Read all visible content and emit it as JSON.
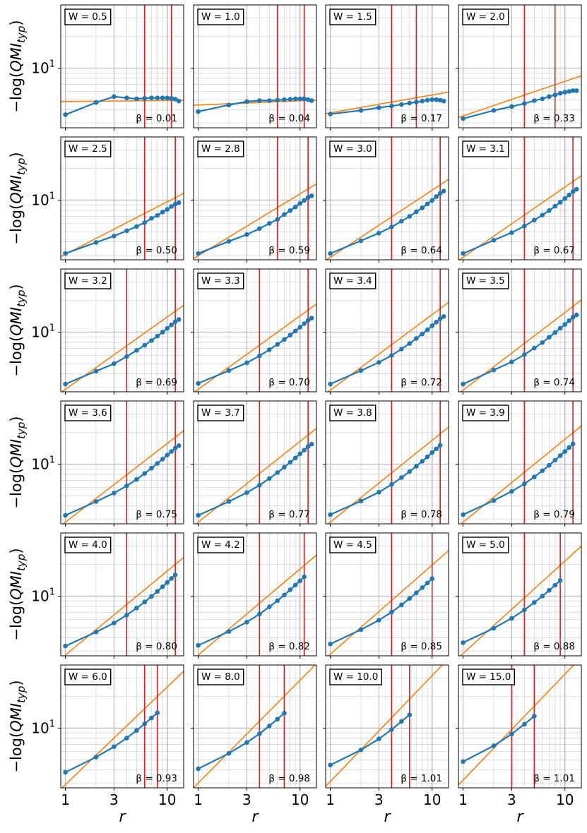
{
  "chart_data": {
    "type": "line",
    "layout": "6x4 grid of panels, log-log axes",
    "x_scale": "log",
    "y_scale": "log",
    "xlim": [
      0.9,
      14.5
    ],
    "ylim": [
      2.7,
      40
    ],
    "x_ticks": [
      1,
      3,
      10
    ],
    "x_tick_labels": [
      "1",
      "3",
      "10"
    ],
    "y_ticks": [
      10
    ],
    "y_tick_labels": [
      "10"
    ],
    "y_tick_exponent": "1",
    "xlabel": "r",
    "ylabel_prefix": "−log(",
    "ylabel_main": "QMI",
    "ylabel_sub": "typ",
    "ylabel_suffix": ")",
    "grid": true,
    "colors": {
      "data": "#1f77b4",
      "fit": "#ff7f0e",
      "window": "#e31a1c",
      "grid": "#b0b0b0"
    },
    "data_r": [
      1,
      2,
      3,
      4,
      5,
      6,
      7,
      8,
      9,
      10,
      11,
      12,
      13
    ],
    "panels": [
      {
        "W": "W = 0.5",
        "beta": "β = 0.01",
        "beta_value": 0.01,
        "fit_a": 4.8,
        "window": [
          6,
          11
        ],
        "y": [
          3.6,
          4.7,
          5.35,
          5.2,
          5.1,
          5.15,
          5.2,
          5.2,
          5.2,
          5.2,
          5.15,
          5.05,
          4.85
        ]
      },
      {
        "W": "W = 1.0",
        "beta": "β = 0.04",
        "beta_value": 0.04,
        "fit_a": 4.45,
        "window": [
          6,
          11
        ],
        "y": [
          3.85,
          4.45,
          4.8,
          4.9,
          4.9,
          4.95,
          5.0,
          5.05,
          5.1,
          5.1,
          5.1,
          5.0,
          4.9
        ]
      },
      {
        "W": "W = 1.5",
        "beta": "β = 0.17",
        "beta_value": 0.17,
        "fit_a": 3.75,
        "window": [
          4,
          7
        ],
        "y": [
          3.65,
          3.95,
          4.2,
          4.35,
          4.5,
          4.65,
          4.75,
          4.85,
          4.95,
          5.0,
          5.0,
          4.95,
          4.85
        ]
      },
      {
        "W": "W = 2.0",
        "beta": "β = 0.33",
        "beta_value": 0.33,
        "fit_a": 3.5,
        "window": [
          4,
          8
        ],
        "y": [
          3.3,
          3.95,
          4.3,
          4.6,
          4.9,
          5.1,
          5.35,
          5.55,
          5.75,
          5.9,
          6.0,
          6.1,
          6.1
        ]
      },
      {
        "W": "W = 2.5",
        "beta": "β = 0.50",
        "beta_value": 0.5,
        "fit_a": 3.05,
        "window": [
          6,
          12
        ],
        "y": [
          3.1,
          3.95,
          4.55,
          5.1,
          5.6,
          6.1,
          6.7,
          7.15,
          7.7,
          8.15,
          8.7,
          9.15,
          9.45
        ]
      },
      {
        "W": "W = 2.8",
        "beta": "β = 0.59",
        "beta_value": 0.59,
        "fit_a": 2.95,
        "window": [
          6,
          12
        ],
        "y": [
          3.1,
          4.05,
          4.7,
          5.35,
          6.0,
          6.55,
          7.3,
          7.95,
          8.6,
          9.3,
          9.95,
          10.6,
          11.0
        ]
      },
      {
        "W": "W = 3.0",
        "beta": "β = 0.64",
        "beta_value": 0.64,
        "fit_a": 2.85,
        "window": [
          4,
          12
        ],
        "y": [
          3.1,
          4.1,
          4.85,
          5.55,
          6.3,
          7.0,
          7.75,
          8.45,
          9.2,
          9.95,
          10.8,
          11.6,
          12.2
        ]
      },
      {
        "W": "W = 3.1",
        "beta": "β = 0.67",
        "beta_value": 0.67,
        "fit_a": 2.85,
        "window": [
          4,
          12
        ],
        "y": [
          3.1,
          4.15,
          4.9,
          5.65,
          6.45,
          7.2,
          7.95,
          8.75,
          9.55,
          10.35,
          11.2,
          12.05,
          12.7
        ]
      },
      {
        "W": "W = 3.2",
        "beta": "β = 0.69",
        "beta_value": 0.69,
        "fit_a": 2.85,
        "window": [
          4,
          12
        ],
        "y": [
          3.2,
          4.25,
          5.0,
          5.85,
          6.7,
          7.5,
          8.3,
          9.15,
          10.0,
          10.85,
          11.7,
          12.55,
          13.2
        ]
      },
      {
        "W": "W = 3.3",
        "beta": "β = 0.70",
        "beta_value": 0.7,
        "fit_a": 2.85,
        "window": [
          4,
          12
        ],
        "y": [
          3.25,
          4.3,
          5.1,
          5.95,
          6.8,
          7.65,
          8.5,
          9.35,
          10.25,
          11.15,
          12.05,
          12.95,
          13.6
        ]
      },
      {
        "W": "W = 3.4",
        "beta": "β = 0.72",
        "beta_value": 0.72,
        "fit_a": 2.8,
        "window": [
          4,
          12
        ],
        "y": [
          3.2,
          4.3,
          5.15,
          6.0,
          6.9,
          7.8,
          8.7,
          9.6,
          10.55,
          11.5,
          12.45,
          13.4,
          14.1
        ]
      },
      {
        "W": "W = 3.5",
        "beta": "β = 0.74",
        "beta_value": 0.74,
        "fit_a": 2.8,
        "window": [
          4,
          12
        ],
        "y": [
          3.2,
          4.35,
          5.2,
          6.1,
          7.05,
          7.95,
          8.95,
          9.9,
          10.9,
          11.85,
          12.85,
          13.85,
          14.6
        ]
      },
      {
        "W": "W = 3.6",
        "beta": "β = 0.75",
        "beta_value": 0.75,
        "fit_a": 2.8,
        "window": [
          4,
          12
        ],
        "y": [
          3.25,
          4.4,
          5.3,
          6.2,
          7.15,
          8.15,
          9.15,
          10.15,
          11.15,
          12.2,
          13.2,
          14.2,
          15.0
        ]
      },
      {
        "W": "W = 3.7",
        "beta": "β = 0.77",
        "beta_value": 0.77,
        "fit_a": 2.8,
        "window": [
          4,
          12
        ],
        "y": [
          3.25,
          4.4,
          5.35,
          6.3,
          7.3,
          8.3,
          9.35,
          10.4,
          11.45,
          12.55,
          13.6,
          14.7,
          15.5
        ]
      },
      {
        "W": "W = 3.8",
        "beta": "β = 0.78",
        "beta_value": 0.78,
        "fit_a": 2.8,
        "window": [
          4,
          12
        ],
        "y": [
          3.3,
          4.45,
          5.4,
          6.4,
          7.45,
          8.5,
          9.55,
          10.65,
          11.75,
          12.9,
          14.0,
          15.15
        ]
      },
      {
        "W": "W = 3.9",
        "beta": "β = 0.79",
        "beta_value": 0.79,
        "fit_a": 2.8,
        "window": [
          4,
          12
        ],
        "y": [
          3.3,
          4.5,
          5.5,
          6.5,
          7.55,
          8.65,
          9.75,
          10.9,
          12.05,
          13.2,
          14.4,
          15.6
        ]
      },
      {
        "W": "W = 4.0",
        "beta": "β = 0.80",
        "beta_value": 0.8,
        "fit_a": 2.75,
        "window": [
          4,
          12
        ],
        "y": [
          3.35,
          4.55,
          5.55,
          6.6,
          7.7,
          8.8,
          9.95,
          11.1,
          12.3,
          13.5,
          14.75,
          15.95
        ]
      },
      {
        "W": "W = 4.2",
        "beta": "β = 0.82",
        "beta_value": 0.82,
        "fit_a": 2.75,
        "window": [
          4,
          11
        ],
        "y": [
          3.4,
          4.6,
          5.65,
          6.75,
          7.9,
          9.05,
          10.25,
          11.5,
          12.75,
          14.0,
          15.3
        ]
      },
      {
        "W": "W = 4.5",
        "beta": "β = 0.85",
        "beta_value": 0.85,
        "fit_a": 2.8,
        "window": [
          4,
          10
        ],
        "y": [
          3.5,
          4.8,
          5.9,
          7.05,
          8.25,
          9.5,
          10.75,
          12.05,
          13.35,
          14.7
        ]
      },
      {
        "W": "W = 5.0",
        "beta": "β = 0.88",
        "beta_value": 0.88,
        "fit_a": 2.85,
        "window": [
          4,
          9
        ],
        "y": [
          3.6,
          4.95,
          6.15,
          7.4,
          8.7,
          10.0,
          11.35,
          12.7,
          14.1
        ]
      },
      {
        "W": "W = 6.0",
        "beta": "β = 0.93",
        "beta_value": 0.93,
        "fit_a": 2.9,
        "window": [
          6,
          8
        ],
        "y": [
          3.8,
          5.3,
          6.65,
          8.05,
          9.5,
          11.0,
          12.5,
          14.0
        ]
      },
      {
        "W": "W = 8.0",
        "beta": "β = 0.98",
        "beta_value": 0.98,
        "fit_a": 3.0,
        "window": [
          4,
          7
        ],
        "y": [
          4.1,
          5.75,
          7.3,
          8.85,
          10.5,
          12.2,
          13.9
        ]
      },
      {
        "W": "W = 10.0",
        "beta": "β = 1.01",
        "beta_value": 1.01,
        "fit_a": 3.1,
        "window": [
          4,
          6
        ],
        "y": [
          4.45,
          6.2,
          7.9,
          9.7,
          11.6,
          13.4
        ]
      },
      {
        "W": "W = 15.0",
        "beta": "β = 1.01",
        "beta_value": 1.01,
        "fit_a": 3.2,
        "window": [
          3,
          5
        ],
        "y": [
          4.8,
          6.8,
          8.8,
          10.9,
          13.0
        ]
      }
    ]
  }
}
